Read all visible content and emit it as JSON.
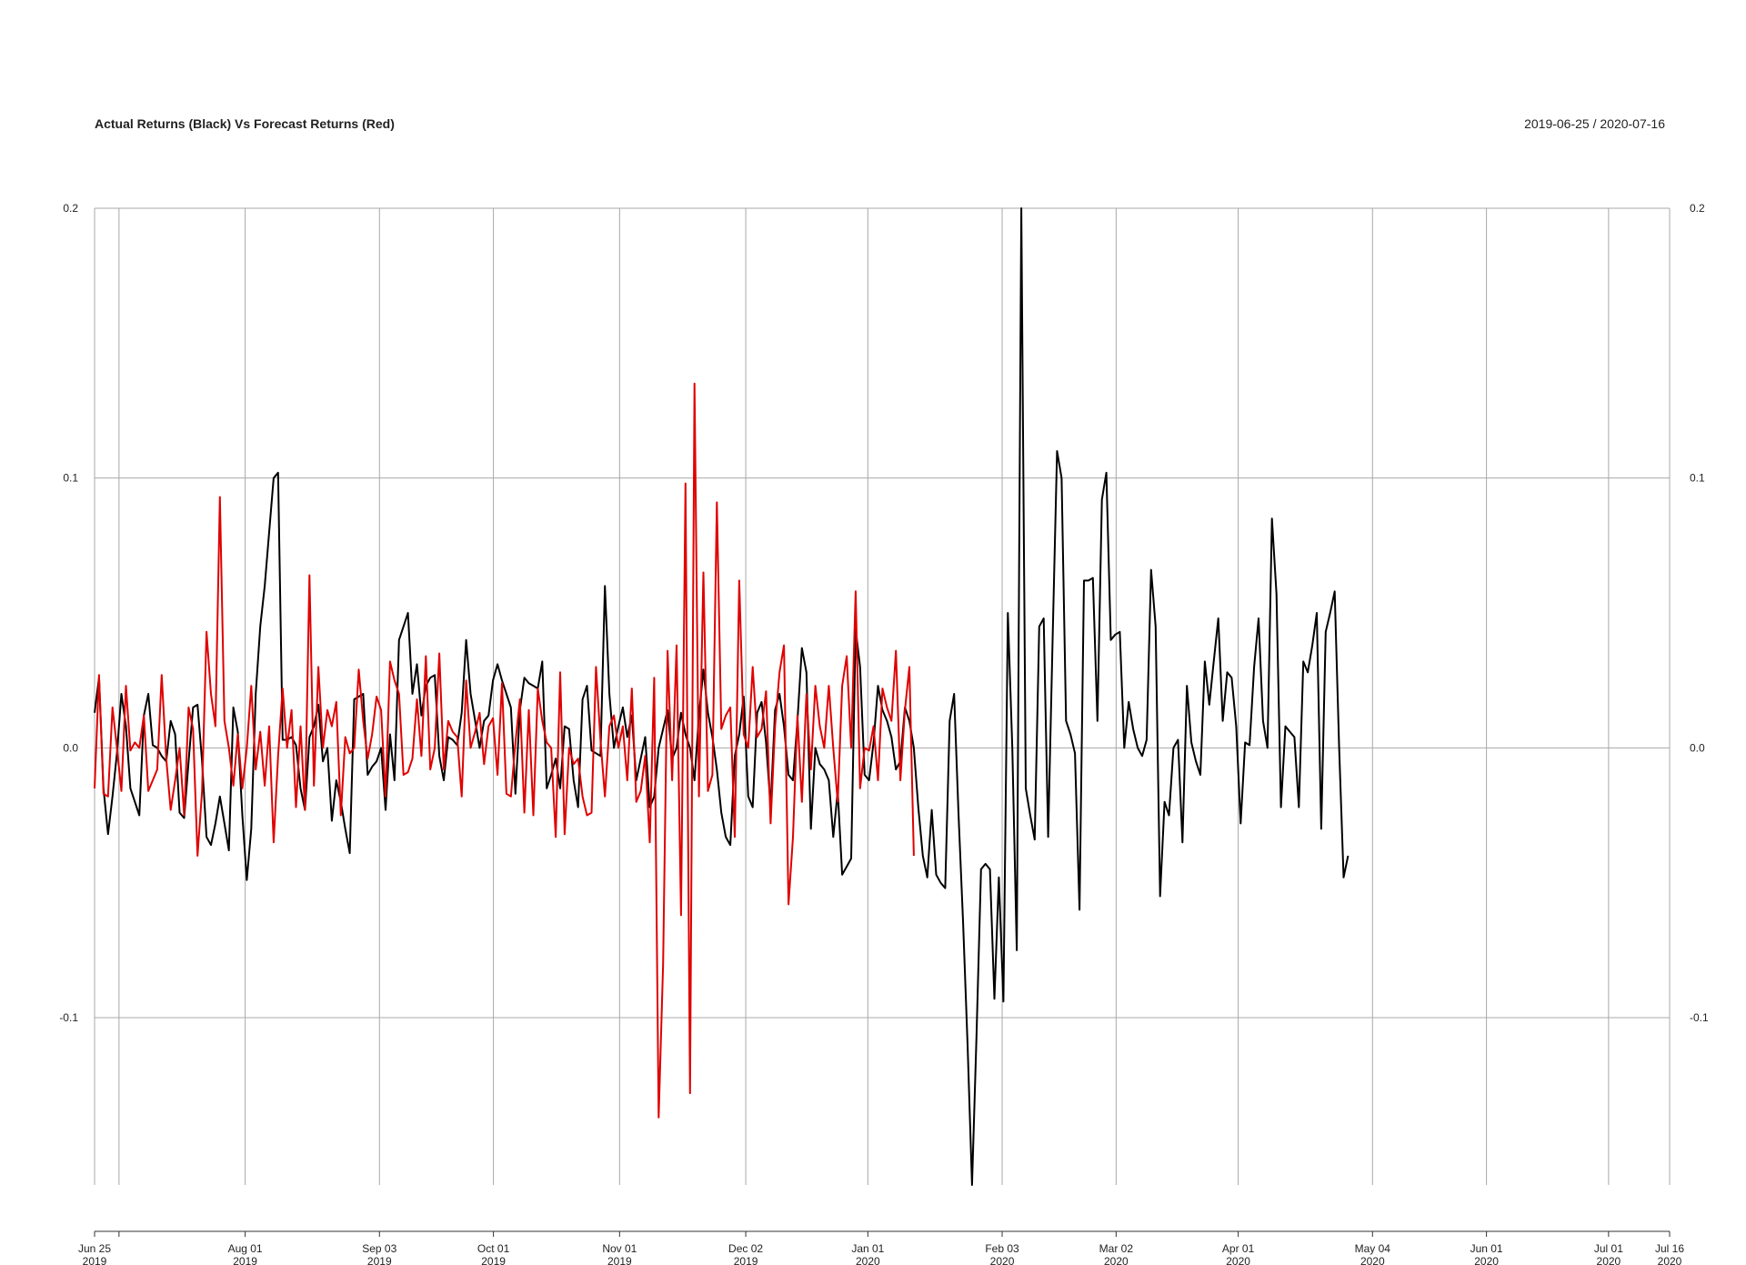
{
  "chart_data": {
    "type": "line",
    "title": "Actual Returns (Black) Vs Forecast Returns (Red)",
    "date_range": "2019-06-25 / 2020-07-16",
    "xlabel": "",
    "ylabel": "",
    "ylim": [
      -0.162,
      0.2
    ],
    "yticks": [
      {
        "value": 0.2,
        "label": "0.2"
      },
      {
        "value": 0.1,
        "label": "0.1"
      },
      {
        "value": 0.0,
        "label": "0.0"
      },
      {
        "value": -0.1,
        "label": "-0.1"
      }
    ],
    "xlim": [
      "2019-06-25",
      "2020-07-16"
    ],
    "xticks": [
      {
        "date": "2019-06-25",
        "line1": "Jun 25",
        "line2": "2019"
      },
      {
        "date": "2019-07-01",
        "line1": "",
        "line2": ""
      },
      {
        "date": "2019-08-01",
        "line1": "Aug 01",
        "line2": "2019"
      },
      {
        "date": "2019-09-03",
        "line1": "Sep 03",
        "line2": "2019"
      },
      {
        "date": "2019-10-01",
        "line1": "Oct 01",
        "line2": "2019"
      },
      {
        "date": "2019-11-01",
        "line1": "Nov 01",
        "line2": "2019"
      },
      {
        "date": "2019-12-02",
        "line1": "Dec 02",
        "line2": "2019"
      },
      {
        "date": "2020-01-01",
        "line1": "Jan 01",
        "line2": "2020"
      },
      {
        "date": "2020-02-03",
        "line1": "Feb 03",
        "line2": "2020"
      },
      {
        "date": "2020-03-02",
        "line1": "Mar 02",
        "line2": "2020"
      },
      {
        "date": "2020-04-01",
        "line1": "Apr 01",
        "line2": "2020"
      },
      {
        "date": "2020-05-04",
        "line1": "May 04",
        "line2": "2020"
      },
      {
        "date": "2020-06-01",
        "line1": "Jun 01",
        "line2": "2020"
      },
      {
        "date": "2020-07-01",
        "line1": "Jul 01",
        "line2": "2020"
      },
      {
        "date": "2020-07-16",
        "line1": "Jul 16",
        "line2": "2020"
      }
    ],
    "grid": true,
    "colors": {
      "actual": "#000000",
      "forecast": "#e00000",
      "grid": "#a8a8a8",
      "axis": "#333333"
    },
    "series": [
      {
        "color": "#000000",
        "start_date": "2019-06-25",
        "step_days": 1.1,
        "values": [
          0.013,
          0.026,
          -0.015,
          -0.032,
          -0.018,
          -0.002,
          0.02,
          0.008,
          -0.015,
          -0.02,
          -0.025,
          0.012,
          0.02,
          0.001,
          0.0,
          -0.003,
          -0.005,
          0.01,
          0.005,
          -0.024,
          -0.026,
          -0.005,
          0.015,
          0.016,
          -0.005,
          -0.033,
          -0.036,
          -0.028,
          -0.018,
          -0.028,
          -0.038,
          0.015,
          0.006,
          -0.025,
          -0.049,
          -0.03,
          0.02,
          0.045,
          0.06,
          0.08,
          0.1,
          0.102,
          0.003,
          0.003,
          0.004,
          0.001,
          -0.015,
          -0.023,
          0.004,
          0.008,
          0.016,
          -0.005,
          0.0,
          -0.027,
          -0.012,
          -0.02,
          -0.03,
          -0.039,
          0.018,
          0.019,
          0.02,
          -0.01,
          -0.007,
          -0.005,
          0.0,
          -0.023,
          0.005,
          -0.012,
          0.04,
          0.045,
          0.05,
          0.02,
          0.031,
          0.012,
          0.023,
          0.026,
          0.027,
          -0.003,
          -0.012,
          0.004,
          0.003,
          0.001,
          0.013,
          0.04,
          0.02,
          0.01,
          0.0,
          0.01,
          0.012,
          0.025,
          0.031,
          0.025,
          0.02,
          0.015,
          -0.017,
          0.014,
          0.026,
          0.024,
          0.023,
          0.022,
          0.032,
          -0.015,
          -0.01,
          -0.004,
          -0.015,
          0.008,
          0.007,
          -0.012,
          -0.022,
          0.018,
          0.023,
          -0.001,
          -0.002,
          -0.003,
          0.06,
          0.02,
          0.0,
          0.008,
          0.015,
          0.004,
          0.012,
          -0.012,
          -0.004,
          0.004,
          -0.022,
          -0.018,
          0.0,
          0.007,
          0.014,
          -0.004,
          0.0,
          0.013,
          0.005,
          0.0,
          -0.012,
          0.012,
          0.029,
          0.013,
          0.004,
          -0.008,
          -0.024,
          -0.033,
          -0.036,
          -0.003,
          0.005,
          0.019,
          -0.018,
          -0.022,
          0.013,
          0.017,
          0.002,
          -0.022,
          0.014,
          0.02,
          0.008,
          -0.01,
          -0.012,
          0.01,
          0.037,
          0.028,
          -0.03,
          0.0,
          -0.006,
          -0.008,
          -0.012,
          -0.033,
          -0.016,
          -0.047,
          -0.044,
          -0.041,
          0.044,
          0.03,
          -0.01,
          -0.012,
          0.002,
          0.023,
          0.014,
          0.01,
          0.004,
          -0.008,
          -0.005,
          0.015,
          0.01,
          0.0,
          -0.022,
          -0.04,
          -0.048,
          -0.023,
          -0.047,
          -0.05,
          -0.052,
          0.01,
          0.02,
          -0.025,
          -0.065,
          -0.11,
          -0.162,
          -0.107,
          -0.045,
          -0.043,
          -0.045,
          -0.093,
          -0.048,
          -0.094,
          0.05,
          0.0,
          -0.075,
          0.2,
          -0.015,
          -0.025,
          -0.034,
          0.045,
          0.048,
          -0.033,
          0.04,
          0.11,
          0.1,
          0.01,
          0.005,
          -0.002,
          -0.06,
          0.062,
          0.062,
          0.063,
          0.01,
          0.092,
          0.102,
          0.04,
          0.042,
          0.043,
          0.0,
          0.017,
          0.007,
          0.0,
          -0.003,
          0.003,
          0.066,
          0.045,
          -0.055,
          -0.02,
          -0.025,
          0.0,
          0.003,
          -0.035,
          0.023,
          0.002,
          -0.005,
          -0.01,
          0.032,
          0.016,
          0.032,
          0.048,
          0.01,
          0.028,
          0.026,
          0.008,
          -0.028,
          0.002,
          0.001,
          0.03,
          0.048,
          0.01,
          0.0,
          0.085,
          0.057,
          -0.022,
          0.008,
          0.006,
          0.004,
          -0.022,
          0.032,
          0.028,
          0.038,
          0.05,
          -0.03,
          0.043,
          0.05,
          0.058,
          0.0,
          -0.048,
          -0.04
        ]
      },
      {
        "color": "#e00000",
        "start_date": "2019-06-25",
        "step_days": 1.1,
        "values": [
          -0.015,
          0.027,
          -0.017,
          -0.018,
          0.015,
          0.0,
          -0.016,
          0.023,
          -0.001,
          0.002,
          0.0,
          0.012,
          -0.016,
          -0.012,
          -0.008,
          0.027,
          -0.004,
          -0.023,
          -0.012,
          0.0,
          -0.025,
          0.015,
          0.007,
          -0.04,
          -0.016,
          0.043,
          0.02,
          0.008,
          0.093,
          0.01,
          0.0,
          -0.014,
          0.005,
          -0.015,
          0.0,
          0.023,
          -0.008,
          0.006,
          -0.014,
          0.008,
          -0.035,
          -0.003,
          0.022,
          0.0,
          0.014,
          -0.022,
          0.008,
          -0.023,
          0.064,
          -0.014,
          0.03,
          0.0,
          0.014,
          0.008,
          0.017,
          -0.025,
          0.004,
          -0.002,
          0.0,
          0.029,
          0.01,
          -0.004,
          0.005,
          0.019,
          0.014,
          -0.018,
          0.032,
          0.025,
          0.02,
          -0.01,
          -0.009,
          -0.004,
          0.018,
          -0.003,
          0.034,
          -0.008,
          0.0,
          0.035,
          -0.008,
          0.01,
          0.006,
          0.004,
          -0.018,
          0.025,
          0.0,
          0.006,
          0.013,
          -0.006,
          0.008,
          0.011,
          -0.01,
          0.024,
          -0.017,
          -0.018,
          0.002,
          0.018,
          -0.024,
          0.014,
          -0.025,
          0.022,
          0.01,
          0.002,
          0.0,
          -0.033,
          0.028,
          -0.032,
          0.0,
          -0.006,
          -0.004,
          -0.018,
          -0.025,
          -0.024,
          0.03,
          0.003,
          -0.018,
          0.008,
          0.012,
          0.0,
          0.008,
          -0.012,
          0.022,
          -0.02,
          -0.016,
          -0.003,
          -0.035,
          0.026,
          -0.137,
          -0.08,
          0.036,
          -0.012,
          0.038,
          -0.062,
          0.098,
          -0.128,
          0.135,
          -0.018,
          0.065,
          -0.016,
          -0.01,
          0.091,
          0.007,
          0.012,
          0.015,
          -0.033,
          0.062,
          0.005,
          0.0,
          0.03,
          0.004,
          0.007,
          0.021,
          -0.028,
          0.008,
          0.028,
          0.038,
          -0.058,
          -0.033,
          0.012,
          -0.02,
          0.02,
          -0.008,
          0.023,
          0.008,
          0.0,
          0.023,
          0.0,
          -0.02,
          0.023,
          0.034,
          0.0,
          0.058,
          -0.015,
          0.0,
          -0.001,
          0.008,
          -0.012,
          0.022,
          0.015,
          0.01,
          0.036,
          -0.012,
          0.014,
          0.03,
          -0.04
        ]
      }
    ]
  }
}
